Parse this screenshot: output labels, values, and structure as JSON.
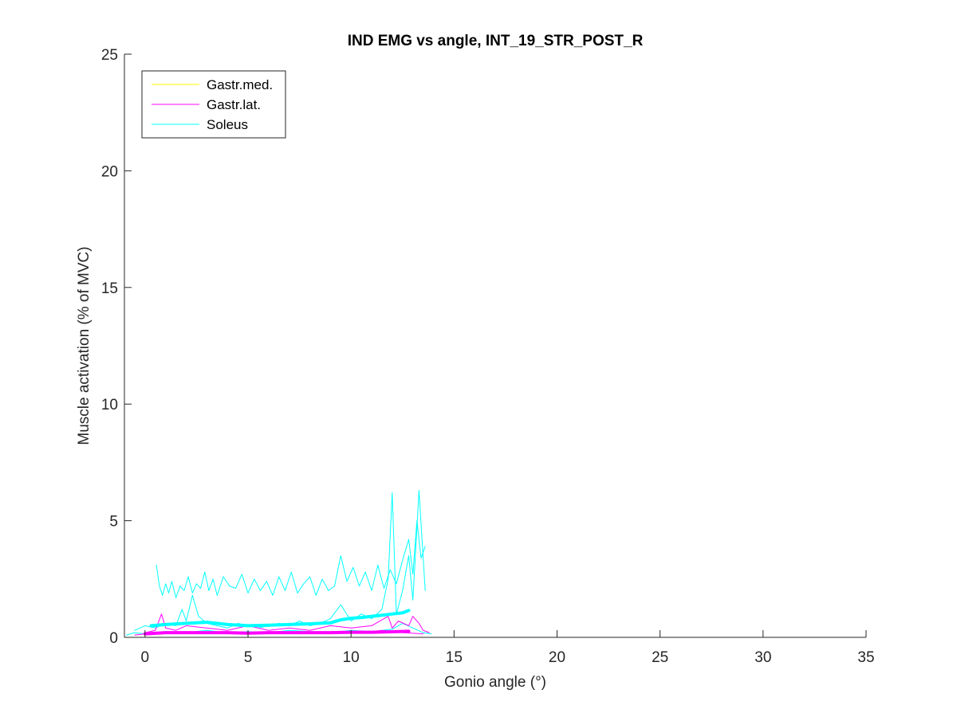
{
  "chart_data": {
    "type": "line",
    "title": "IND EMG vs angle, INT_19_STR_POST_R",
    "xlabel": "Gonio angle (°)",
    "ylabel": "Muscle activation (% of MVC)",
    "xlim": [
      -1,
      35
    ],
    "ylim": [
      0,
      25
    ],
    "xticks": [
      0,
      5,
      10,
      15,
      20,
      25,
      30,
      35
    ],
    "yticks": [
      0,
      5,
      10,
      15,
      20,
      25
    ],
    "xtick_labels": [
      "0",
      "5",
      "10",
      "15",
      "20",
      "25",
      "30",
      "35"
    ],
    "ytick_labels": [
      "0",
      "5",
      "10",
      "15",
      "20",
      "25"
    ],
    "grid": false,
    "legend_position": "top-left",
    "legend": [
      {
        "label": "Gastr.med.",
        "color": "#FFFF00"
      },
      {
        "label": "Gastr.lat.",
        "color": "#FF00FF"
      },
      {
        "label": "Soleus",
        "color": "#00FFFF"
      }
    ],
    "series": [
      {
        "name": "Soleus",
        "color": "#00FFFF",
        "width": 1,
        "x": [
          0.55,
          0.7,
          0.85,
          1.0,
          1.15,
          1.3,
          1.5,
          1.7,
          1.9,
          2.1,
          2.3,
          2.5,
          2.7,
          2.9,
          3.1,
          3.3,
          3.5,
          3.8,
          4.1,
          4.4,
          4.7,
          5.0,
          5.3,
          5.6,
          5.9,
          6.2,
          6.5,
          6.8,
          7.1,
          7.4,
          7.7,
          8.0,
          8.3,
          8.6,
          8.9,
          9.2,
          9.5,
          9.8,
          10.1,
          10.4,
          10.7,
          11.0,
          11.3,
          11.6,
          11.9,
          12.2,
          12.5,
          12.8,
          13.0,
          13.2,
          13.4,
          13.6
        ],
        "y": [
          3.1,
          2.2,
          1.8,
          2.3,
          1.9,
          2.4,
          1.7,
          2.2,
          2.0,
          2.6,
          1.9,
          2.3,
          2.1,
          2.8,
          2.0,
          2.5,
          1.8,
          2.6,
          2.2,
          2.1,
          2.7,
          1.9,
          2.5,
          2.0,
          2.4,
          1.8,
          2.6,
          2.0,
          2.8,
          1.9,
          2.3,
          2.6,
          1.8,
          2.5,
          2.0,
          2.2,
          3.5,
          2.4,
          3.0,
          2.2,
          2.8,
          2.0,
          3.1,
          2.1,
          2.9,
          2.3,
          3.3,
          4.2,
          2.7,
          5.0,
          3.4,
          3.9
        ]
      },
      {
        "name": "Soleus",
        "color": "#00FFFF",
        "width": 1,
        "x": [
          -0.5,
          0.0,
          0.5,
          1.0,
          1.5,
          1.8,
          2.0,
          2.3,
          2.6,
          3.0,
          3.5,
          4.0,
          4.5,
          5.0,
          5.5,
          6.0,
          6.5,
          7.0,
          7.5,
          8.0,
          8.5,
          9.0,
          9.5,
          10.0,
          10.5,
          11.0,
          11.5,
          11.8,
          12.0,
          12.2,
          12.5,
          12.8,
          13.0,
          13.3,
          13.6
        ],
        "y": [
          0.3,
          0.5,
          0.4,
          0.6,
          0.5,
          1.2,
          0.7,
          1.8,
          0.9,
          0.6,
          0.5,
          0.4,
          0.6,
          0.5,
          0.4,
          0.5,
          0.6,
          0.5,
          0.7,
          0.5,
          0.6,
          0.8,
          1.4,
          0.7,
          1.0,
          0.8,
          1.2,
          2.5,
          6.2,
          1.0,
          2.0,
          3.5,
          1.6,
          6.3,
          2.0
        ]
      },
      {
        "name": "Soleus",
        "color": "#00FFFF",
        "width": 1,
        "x": [
          -0.9,
          -0.5,
          0.0,
          0.5,
          1.0,
          2.0,
          3.0,
          4.0,
          5.0,
          6.0,
          7.0,
          8.0,
          9.0,
          10.0,
          11.0,
          12.0,
          12.5,
          13.0,
          13.5,
          13.9
        ],
        "y": [
          0.1,
          0.2,
          0.15,
          0.2,
          0.25,
          0.2,
          0.3,
          0.2,
          0.25,
          0.2,
          0.3,
          0.25,
          0.2,
          0.3,
          0.25,
          0.35,
          0.6,
          0.4,
          0.2,
          0.15
        ]
      },
      {
        "name": "Gastr.lat.",
        "color": "#FF00FF",
        "width": 1,
        "x": [
          0.0,
          0.5,
          0.8,
          1.0,
          1.5,
          2.0,
          3.0,
          4.0,
          5.0,
          6.0,
          7.0,
          8.0,
          9.0,
          10.0,
          11.0,
          11.8,
          12.0,
          12.3,
          12.8,
          13.0,
          13.3,
          13.5,
          13.8
        ],
        "y": [
          0.2,
          0.3,
          1.0,
          0.4,
          0.3,
          0.5,
          0.4,
          0.3,
          0.5,
          0.3,
          0.4,
          0.3,
          0.5,
          0.4,
          0.5,
          0.9,
          0.4,
          0.7,
          0.5,
          0.9,
          0.6,
          0.3,
          0.2
        ]
      },
      {
        "name": "Gastr.lat.",
        "color": "#FF00FF",
        "width": 1,
        "x": [
          -0.5,
          0.5,
          1.5,
          2.5,
          3.5,
          4.5,
          5.5,
          6.5,
          7.5,
          8.5,
          9.5,
          10.5,
          11.5,
          12.5,
          13.5
        ],
        "y": [
          0.1,
          0.2,
          0.15,
          0.25,
          0.2,
          0.15,
          0.2,
          0.25,
          0.15,
          0.2,
          0.25,
          0.2,
          0.3,
          0.2,
          0.15
        ]
      },
      {
        "name": "Gastr.lat.",
        "color": "#FF00FF",
        "width": 4,
        "x": [
          0.0,
          1.0,
          2.0,
          3.0,
          4.0,
          5.0,
          6.0,
          7.0,
          8.0,
          9.0,
          10.0,
          11.0,
          12.0,
          12.8
        ],
        "y": [
          0.15,
          0.2,
          0.2,
          0.2,
          0.2,
          0.18,
          0.2,
          0.2,
          0.2,
          0.2,
          0.22,
          0.22,
          0.24,
          0.26
        ]
      },
      {
        "name": "Soleus",
        "color": "#00FFFF",
        "width": 4,
        "x": [
          0.3,
          1.0,
          2.0,
          3.0,
          4.0,
          5.0,
          6.0,
          7.0,
          8.0,
          9.0,
          9.5,
          10.0,
          10.5,
          11.0,
          11.5,
          12.0,
          12.5,
          12.8
        ],
        "y": [
          0.5,
          0.55,
          0.6,
          0.65,
          0.55,
          0.5,
          0.52,
          0.55,
          0.58,
          0.62,
          0.75,
          0.82,
          0.85,
          0.9,
          0.95,
          1.0,
          1.05,
          1.15
        ]
      }
    ]
  }
}
